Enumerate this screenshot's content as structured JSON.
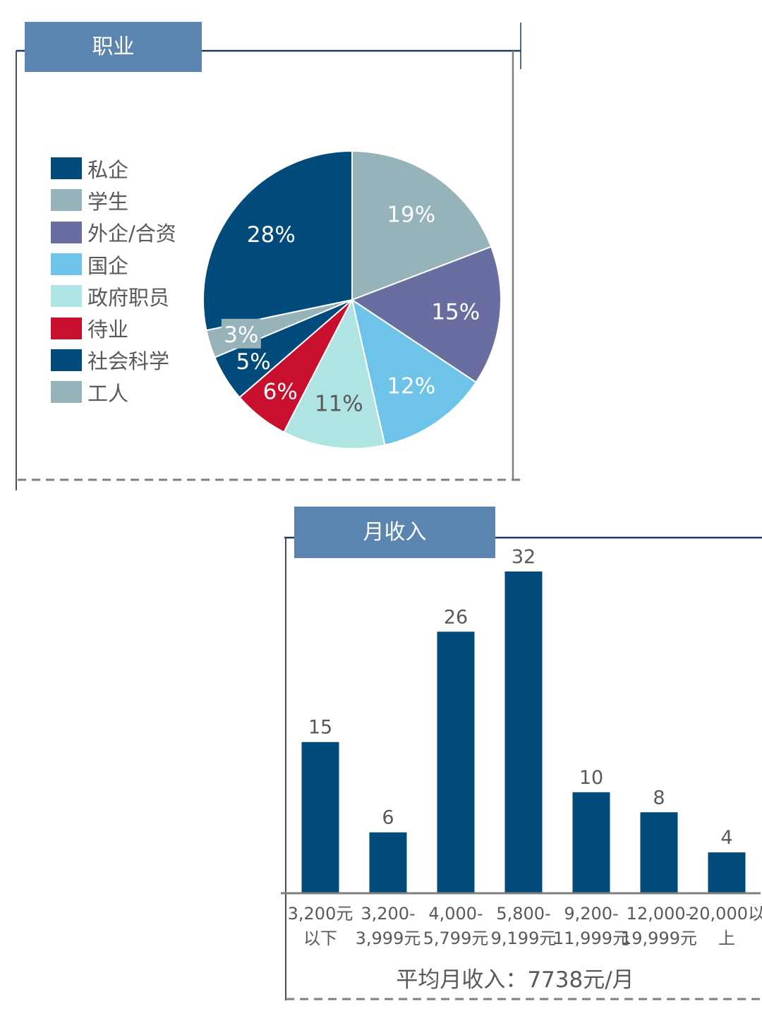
{
  "occupation_panel": {
    "title": "职业"
  },
  "income_panel": {
    "title": "月收入",
    "average_label": "平均月收入：",
    "average_value": "7738元/月"
  },
  "chart_data": [
    {
      "type": "pie",
      "title": "职业",
      "slices": [
        {
          "label": "学生",
          "value": 19,
          "display": "19%",
          "color": "#95b3b9"
        },
        {
          "label": "外企/合资",
          "value": 15,
          "display": "15%",
          "color": "#6a6d9f"
        },
        {
          "label": "国企",
          "value": 12,
          "display": "12%",
          "color": "#6ec3e8"
        },
        {
          "label": "政府职员",
          "value": 11,
          "display": "11%",
          "color": "#b0e4e3"
        },
        {
          "label": "待业",
          "value": 6,
          "display": "6%",
          "color": "#c8102e"
        },
        {
          "label": "社会科学",
          "value": 5,
          "display": "5%",
          "color": "#004a7c"
        },
        {
          "label": "工人",
          "value": 3,
          "display": "3%",
          "color": "#95b3b9"
        },
        {
          "label": "私企",
          "value": 28,
          "display": "28%",
          "color": "#004a7c"
        }
      ],
      "legend": [
        {
          "label": "私企",
          "color": "#004a7c"
        },
        {
          "label": "学生",
          "color": "#95b3b9"
        },
        {
          "label": "外企/合资",
          "color": "#6a6d9f"
        },
        {
          "label": "国企",
          "color": "#6ec3e8"
        },
        {
          "label": "政府职员",
          "color": "#b0e4e3"
        },
        {
          "label": "待业",
          "color": "#c8102e"
        },
        {
          "label": "社会科学",
          "color": "#004a7c"
        },
        {
          "label": "工人",
          "color": "#95b3b9"
        }
      ],
      "legend_position": "left"
    },
    {
      "type": "bar",
      "title": "月收入",
      "categories": [
        [
          "3,200元",
          "以下"
        ],
        [
          "3,200-",
          "3,999元"
        ],
        [
          "4,000-",
          "5,799元"
        ],
        [
          "5,800-",
          "9,199元"
        ],
        [
          "9,200-",
          "11,999元"
        ],
        [
          "12,000-",
          "19,999元"
        ],
        [
          "20,000以",
          "上"
        ]
      ],
      "values": [
        15,
        6,
        26,
        32,
        10,
        8,
        4
      ],
      "ylim": [
        0,
        32
      ],
      "bar_color": "#004a7c",
      "grid": false
    }
  ]
}
